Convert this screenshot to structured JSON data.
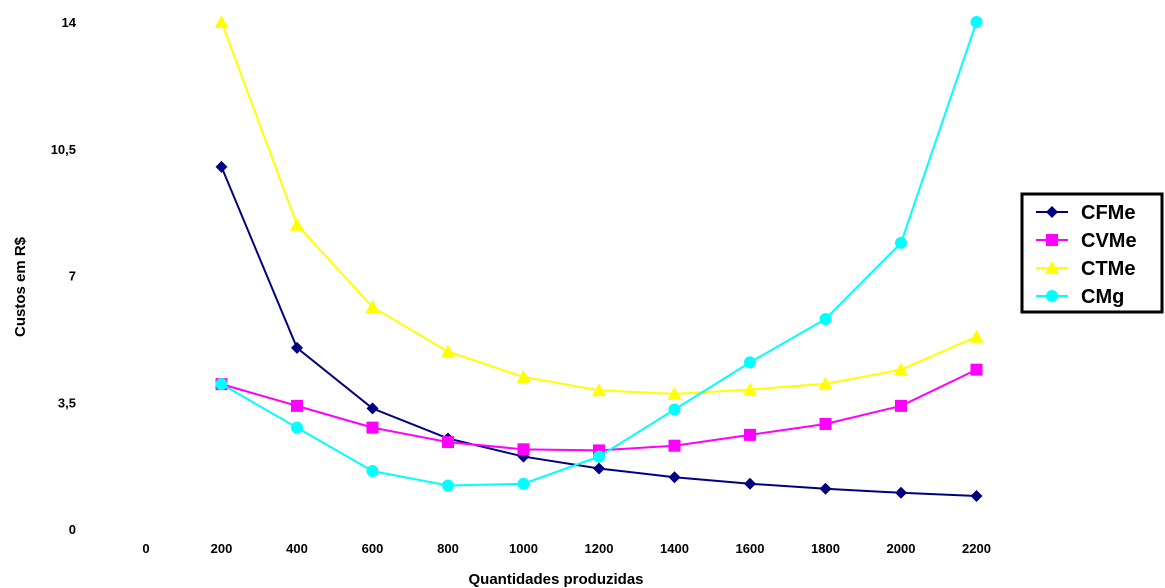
{
  "chart_data": {
    "type": "line",
    "xlabel": "Quantidades produzidas",
    "ylabel": "Custos em R$",
    "x_ticks": [
      "0",
      "200",
      "400",
      "600",
      "800",
      "1000",
      "1200",
      "1400",
      "1600",
      "1800",
      "2000",
      "2200"
    ],
    "y_ticks": [
      "0",
      "3,5",
      "7",
      "10,5",
      "14"
    ],
    "ylim": [
      0,
      14
    ],
    "categories": [
      200,
      400,
      600,
      800,
      1000,
      1200,
      1400,
      1600,
      1800,
      2000,
      2200
    ],
    "grid": false,
    "legend_position": "right",
    "series": [
      {
        "name": "CFMe",
        "color": "#000080",
        "marker": "diamond",
        "values": [
          10.0,
          5.0,
          3.33,
          2.5,
          2.0,
          1.67,
          1.43,
          1.25,
          1.11,
          1.0,
          0.91
        ]
      },
      {
        "name": "CVMe",
        "color": "#FF00FF",
        "marker": "square",
        "values": [
          4.0,
          3.4,
          2.8,
          2.4,
          2.2,
          2.17,
          2.3,
          2.6,
          2.9,
          3.4,
          4.4
        ]
      },
      {
        "name": "CTMe",
        "color": "#FFFF00",
        "marker": "triangle",
        "values": [
          14.0,
          8.4,
          6.13,
          4.9,
          4.2,
          3.83,
          3.73,
          3.85,
          4.01,
          4.4,
          5.31
        ]
      },
      {
        "name": "CMg",
        "color": "#00FFFF",
        "marker": "circle",
        "values": [
          4.0,
          2.8,
          1.6,
          1.2,
          1.25,
          2.0,
          3.3,
          4.6,
          5.8,
          7.9,
          14.0
        ]
      }
    ]
  }
}
